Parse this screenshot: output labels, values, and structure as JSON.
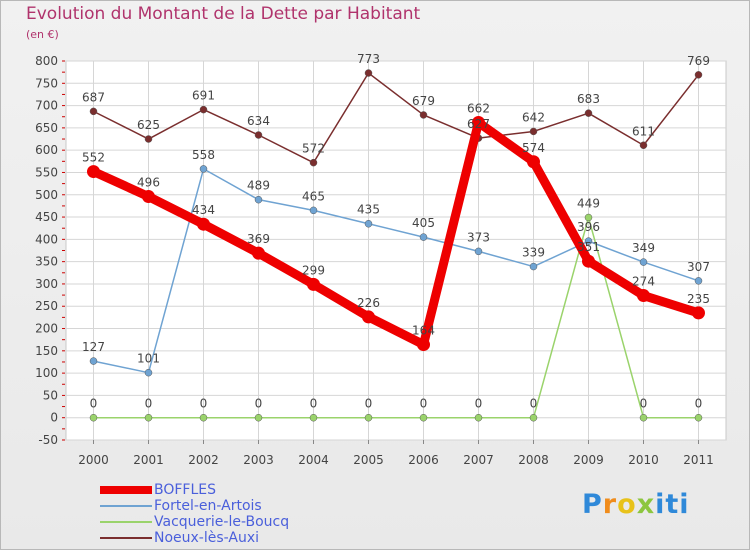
{
  "title": "Evolution du Montant de la Dette par Habitant",
  "subtitle": "(en €)",
  "brand": "Proxiti",
  "chart_data": {
    "type": "line",
    "title": "Evolution du Montant de la Dette par Habitant",
    "subtitle": "(en €)",
    "x": [
      "2000",
      "2001",
      "2002",
      "2003",
      "2004",
      "2005",
      "2006",
      "2007",
      "2008",
      "2009",
      "2010",
      "2011"
    ],
    "yticks": [
      -50,
      0,
      50,
      100,
      150,
      200,
      250,
      300,
      350,
      400,
      450,
      500,
      550,
      600,
      650,
      700,
      750,
      800
    ],
    "ylim": [
      -50,
      800
    ],
    "grid": true,
    "legend_position": "bottom-left",
    "series": [
      {
        "name": "BOFFLES",
        "color": "#ee0000",
        "values": [
          552,
          496,
          434,
          369,
          299,
          226,
          164,
          662,
          574,
          351,
          274,
          235
        ]
      },
      {
        "name": "Fortel-en-Artois",
        "color": "#6fa3d2",
        "values": [
          127,
          101,
          558,
          489,
          465,
          435,
          405,
          373,
          339,
          396,
          349,
          307
        ]
      },
      {
        "name": "Vacquerie-le-Boucq",
        "color": "#9ad36b",
        "values": [
          0,
          0,
          0,
          0,
          0,
          0,
          0,
          0,
          0,
          449,
          0,
          0
        ]
      },
      {
        "name": "Noeux-lès-Auxi",
        "color": "#7a2e2e",
        "values": [
          687,
          625,
          691,
          634,
          572,
          773,
          679,
          627,
          642,
          683,
          611,
          769
        ]
      }
    ]
  }
}
